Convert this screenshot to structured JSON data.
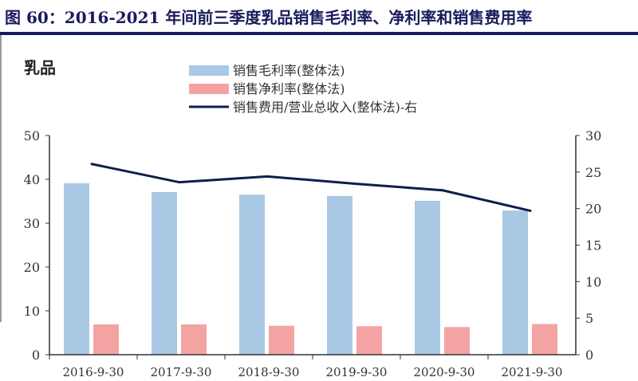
{
  "title": "图 60：2016-2021 年间前三季度乳品销售毛利率、净利率和销售费用率",
  "chart_data": {
    "type": "bar",
    "title": "乳品",
    "categories": [
      "2016-9-30",
      "2017-9-30",
      "2018-9-30",
      "2019-9-30",
      "2020-9-30",
      "2021-9-30"
    ],
    "series": [
      {
        "name": "销售毛利率(整体法)",
        "type": "bar",
        "axis": "left",
        "color": "#a9c8e4",
        "values": [
          39.1,
          37.1,
          36.5,
          36.2,
          35.1,
          32.9
        ]
      },
      {
        "name": "销售净利率(整体法)",
        "type": "bar",
        "axis": "left",
        "color": "#f4a3a3",
        "values": [
          6.9,
          6.9,
          6.6,
          6.5,
          6.3,
          7.0
        ]
      },
      {
        "name": "销售费用/营业总收入(整体法)-右",
        "type": "line",
        "axis": "right",
        "color": "#0f1f4a",
        "values": [
          26.1,
          23.6,
          24.4,
          23.4,
          22.5,
          19.7
        ]
      }
    ],
    "yleft": {
      "range": [
        0,
        50
      ],
      "ticks": [
        0,
        10,
        20,
        30,
        40,
        50
      ]
    },
    "yright": {
      "range": [
        0,
        30
      ],
      "ticks": [
        0,
        5,
        10,
        15,
        20,
        25,
        30
      ]
    },
    "grid": false,
    "legend": "top-center"
  }
}
